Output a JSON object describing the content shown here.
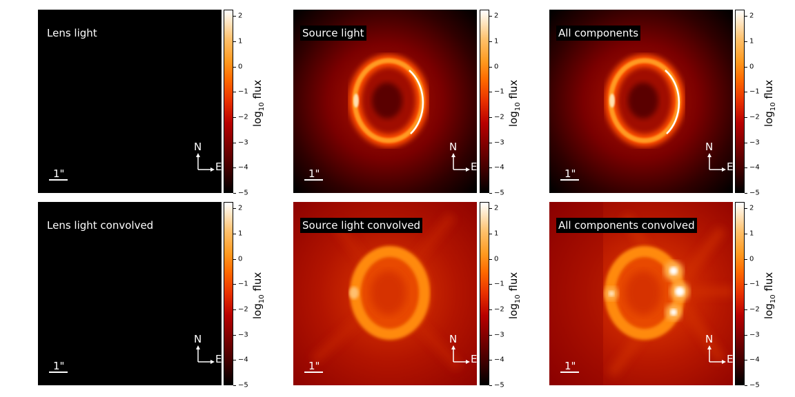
{
  "colorbar": {
    "label_prefix": "log",
    "label_subscript": "10",
    "label_suffix": " flux",
    "ticks": [
      "2",
      "1",
      "0",
      "−1",
      "−2",
      "−3",
      "−4",
      "−5"
    ],
    "tick_values": [
      2,
      1,
      0,
      -1,
      -2,
      -3,
      -4,
      -5
    ],
    "range": [
      -5,
      2.25
    ],
    "colormap": "gist_heat"
  },
  "scalebar_label": "1\"",
  "compass": {
    "north": "N",
    "east": "E"
  },
  "panels": [
    {
      "title": "Lens light"
    },
    {
      "title": "Source light"
    },
    {
      "title": "All components"
    },
    {
      "title": "Lens light convolved"
    },
    {
      "title": "Source light convolved"
    },
    {
      "title": "All components convolved"
    }
  ],
  "chart_data": [
    {
      "type": "heatmap",
      "title": "Lens light",
      "colorbar_label": "log10 flux",
      "zlim": [
        -5,
        2.25
      ],
      "content": "empty"
    },
    {
      "type": "heatmap",
      "title": "Source light",
      "colorbar_label": "log10 flux",
      "zlim": [
        -5,
        2.25
      ],
      "content": "einstein-ring"
    },
    {
      "type": "heatmap",
      "title": "All components",
      "colorbar_label": "log10 flux",
      "zlim": [
        -5,
        2.25
      ],
      "content": "einstein-ring"
    },
    {
      "type": "heatmap",
      "title": "Lens light convolved",
      "colorbar_label": "log10 flux",
      "zlim": [
        -5,
        2.25
      ],
      "content": "empty"
    },
    {
      "type": "heatmap",
      "title": "Source light convolved",
      "colorbar_label": "log10 flux",
      "zlim": [
        -5,
        2.25
      ],
      "content": "convolved-ring"
    },
    {
      "type": "heatmap",
      "title": "All components convolved",
      "colorbar_label": "log10 flux",
      "zlim": [
        -5,
        2.25
      ],
      "content": "convolved-ring-with-point-sources"
    }
  ]
}
